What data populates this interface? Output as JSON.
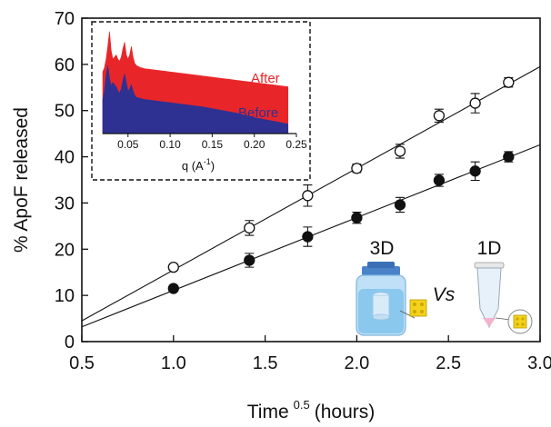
{
  "chart_data": [
    {
      "type": "scatter",
      "xlabel": "Time",
      "xlabel_superscript": "0.5",
      "xlabel_unit": "(hours)",
      "ylabel": "% ApoF released",
      "xlim": [
        0.5,
        3.0
      ],
      "ylim": [
        0,
        70
      ],
      "xticks": [
        "0.5",
        "1.0",
        "1.5",
        "2.0",
        "2.5",
        "3.0"
      ],
      "yticks": [
        "0",
        "10",
        "20",
        "30",
        "40",
        "50",
        "60",
        "70"
      ],
      "grid": false,
      "series": [
        {
          "marker": "open-circle",
          "color": "#111111",
          "x": [
            1.0,
            1.414,
            1.732,
            2.0,
            2.236,
            2.449,
            2.646,
            2.828
          ],
          "y": [
            16.1,
            24.6,
            31.6,
            37.5,
            41.2,
            48.9,
            51.6,
            56.1
          ],
          "error": [
            0.6,
            1.6,
            2.3,
            0.9,
            1.5,
            1.4,
            2.1,
            1.0
          ],
          "fit_line": {
            "x": [
              0.5,
              3.0
            ],
            "y": [
              4.5,
              59.5
            ]
          }
        },
        {
          "marker": "filled-circle",
          "color": "#111111",
          "x": [
            1.0,
            1.414,
            1.732,
            2.0,
            2.236,
            2.449,
            2.646,
            2.828
          ],
          "y": [
            11.5,
            17.6,
            22.7,
            26.8,
            29.6,
            34.9,
            36.9,
            40.0
          ],
          "error": [
            0.5,
            1.5,
            2.1,
            1.2,
            1.6,
            1.3,
            2.0,
            1.1
          ],
          "fit_line": {
            "x": [
              0.5,
              3.0
            ],
            "y": [
              3.2,
              42.6
            ]
          }
        }
      ],
      "annotations": {
        "left_label": "3D",
        "vs_label": "Vs",
        "right_label": "1D"
      }
    },
    {
      "type": "area",
      "xlabel": "q (A",
      "xlabel_superscript": "-1",
      "xlabel_close": ")",
      "xlim": [
        0.02,
        0.25
      ],
      "xticks": [
        "0.05",
        "0.10",
        "0.15",
        "0.20",
        "0.25"
      ],
      "tick_values": [
        0.05,
        0.1,
        0.15,
        0.2,
        0.25
      ],
      "series": [
        {
          "name": "After",
          "color": "#e8262a",
          "x": [
            0.02,
            0.022,
            0.024,
            0.026,
            0.028,
            0.03,
            0.032,
            0.034,
            0.036,
            0.038,
            0.04,
            0.042,
            0.044,
            0.046,
            0.048,
            0.05,
            0.052,
            0.054,
            0.056,
            0.058,
            0.06,
            0.065,
            0.07,
            0.08,
            0.09,
            0.1,
            0.12,
            0.14,
            0.16,
            0.18,
            0.2,
            0.22,
            0.24
          ],
          "y": [
            0.58,
            0.62,
            0.7,
            0.82,
            0.96,
            0.78,
            0.7,
            0.72,
            0.74,
            0.7,
            0.68,
            0.72,
            0.8,
            0.86,
            0.74,
            0.7,
            0.74,
            0.82,
            0.72,
            0.66,
            0.64,
            0.62,
            0.61,
            0.6,
            0.59,
            0.58,
            0.56,
            0.54,
            0.52,
            0.5,
            0.48,
            0.46,
            0.44
          ]
        },
        {
          "name": "Before",
          "color": "#2e3192",
          "x": [
            0.02,
            0.022,
            0.024,
            0.026,
            0.028,
            0.03,
            0.032,
            0.034,
            0.036,
            0.038,
            0.04,
            0.042,
            0.044,
            0.046,
            0.048,
            0.05,
            0.052,
            0.054,
            0.056,
            0.058,
            0.06,
            0.065,
            0.07,
            0.08,
            0.09,
            0.1,
            0.12,
            0.14,
            0.16,
            0.18,
            0.2,
            0.22,
            0.24
          ],
          "y": [
            0.32,
            0.4,
            0.55,
            0.64,
            0.52,
            0.45,
            0.48,
            0.46,
            0.44,
            0.4,
            0.38,
            0.42,
            0.5,
            0.56,
            0.48,
            0.4,
            0.42,
            0.46,
            0.4,
            0.36,
            0.34,
            0.33,
            0.32,
            0.31,
            0.3,
            0.29,
            0.27,
            0.25,
            0.22,
            0.19,
            0.15,
            0.12,
            0.09
          ]
        }
      ]
    }
  ]
}
